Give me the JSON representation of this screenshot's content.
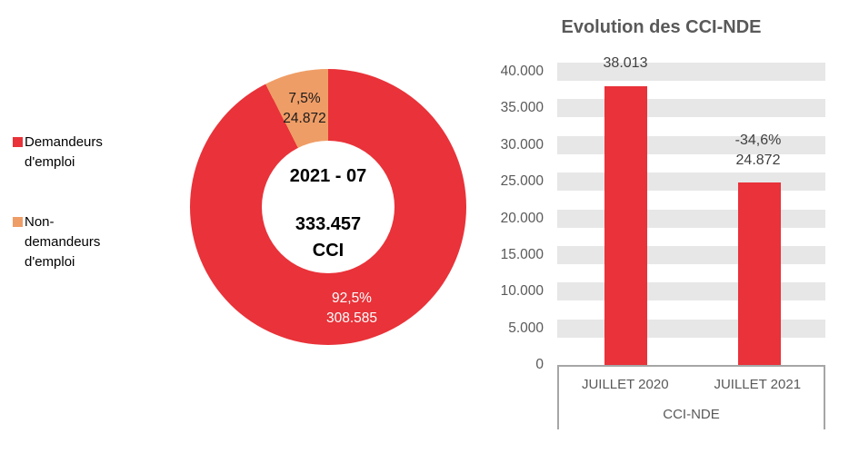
{
  "chart_data": [
    {
      "type": "pie",
      "subtype": "donut",
      "center_labels": {
        "period": "2021 - 07",
        "total": "333.457",
        "unit": "CCI"
      },
      "slices": [
        {
          "label": "Demandeurs d'emploi",
          "value": 308585,
          "pct": 92.5,
          "pct_label": "92,5%",
          "value_label": "308.585",
          "color": "#e93239"
        },
        {
          "label": "Non-demandeurs d'emploi",
          "value": 24872,
          "pct": 7.5,
          "pct_label": "7,5%",
          "value_label": "24.872",
          "color": "#ef9d66"
        }
      ],
      "legend": {
        "position": "left",
        "items": [
          {
            "label": "Demandeurs\nd'emploi",
            "color": "#e93239"
          },
          {
            "label": "Non-\ndemandeurs\nd'emploi",
            "color": "#ef9d66"
          }
        ]
      }
    },
    {
      "type": "bar",
      "title": "Evolution des CCI-NDE",
      "categories": [
        "JUILLET 2020",
        "JUILLET 2021"
      ],
      "values": [
        38013,
        24872
      ],
      "bar_labels": [
        [
          "38.013"
        ],
        [
          "-34,6%",
          "24.872"
        ]
      ],
      "axis_group_label": "CCI-NDE",
      "yticks": [
        "40.000",
        "35.000",
        "30.000",
        "25.000",
        "20.000",
        "15.000",
        "10.000",
        "5.000",
        "0"
      ],
      "ytick_values": [
        40000,
        35000,
        30000,
        25000,
        20000,
        15000,
        10000,
        5000,
        0
      ],
      "ylim": [
        0,
        40000
      ],
      "grid": "horizontal-bands",
      "legend_position": "none",
      "bar_color": "#e93239",
      "band_color": "#e7e7e7"
    }
  ]
}
